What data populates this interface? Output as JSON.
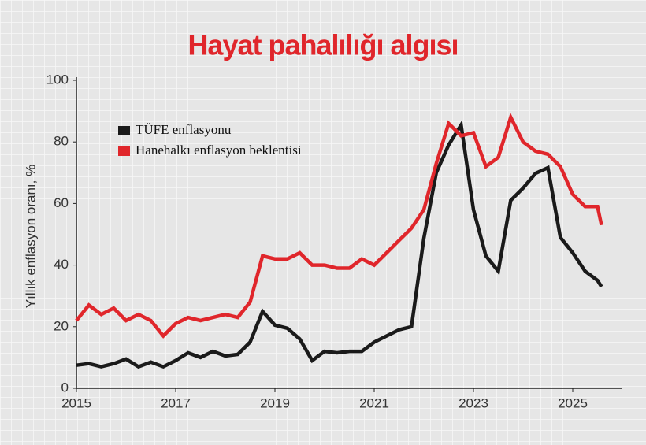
{
  "chart_data": {
    "type": "line",
    "title": "Hayat pahalılığı algısı",
    "y_label": "Yıllık enflasyon oranı, %",
    "x": [
      2015.0,
      2015.25,
      2015.5,
      2015.75,
      2016.0,
      2016.25,
      2016.5,
      2016.75,
      2017.0,
      2017.25,
      2017.5,
      2017.75,
      2018.0,
      2018.25,
      2018.5,
      2018.75,
      2019.0,
      2019.25,
      2019.5,
      2019.75,
      2020.0,
      2020.25,
      2020.5,
      2020.75,
      2021.0,
      2021.25,
      2021.5,
      2021.75,
      2022.0,
      2022.25,
      2022.5,
      2022.75,
      2023.0,
      2023.25,
      2023.5,
      2023.75,
      2024.0,
      2024.25,
      2024.5,
      2024.75,
      2025.0,
      2025.25,
      2025.5,
      2025.58
    ],
    "series": [
      {
        "name": "TÜFE enflasyonu",
        "color": "#1a1a1a",
        "values": [
          7.5,
          8,
          7,
          8,
          9.5,
          7,
          8.5,
          7,
          9,
          11.5,
          10,
          12,
          10.5,
          11,
          15,
          25,
          20.5,
          19.5,
          16,
          9,
          12,
          11.5,
          12,
          12,
          15,
          17,
          19,
          20,
          48.7,
          70,
          79,
          85.5,
          58,
          43,
          38,
          61,
          65,
          69.8,
          71.6,
          49,
          44,
          38,
          35,
          33
        ]
      },
      {
        "name": "Hanehalkı enflasyon beklentisi",
        "color": "#e0262b",
        "values": [
          22,
          27,
          24,
          26,
          22,
          24,
          22,
          17,
          21,
          23,
          22,
          23,
          24,
          23,
          28,
          43,
          42,
          42,
          44,
          40,
          40,
          39,
          39,
          42,
          40,
          44,
          48,
          52,
          58,
          73,
          86,
          82,
          83,
          72,
          75,
          88,
          80,
          77,
          76,
          72,
          63,
          59,
          59,
          53
        ]
      }
    ],
    "xlim": [
      2015,
      2026
    ],
    "xticks": [
      2015,
      2017,
      2019,
      2021,
      2023,
      2025
    ],
    "ylim": [
      0,
      100
    ],
    "yticks": [
      0,
      20,
      40,
      60,
      80,
      100
    ]
  }
}
